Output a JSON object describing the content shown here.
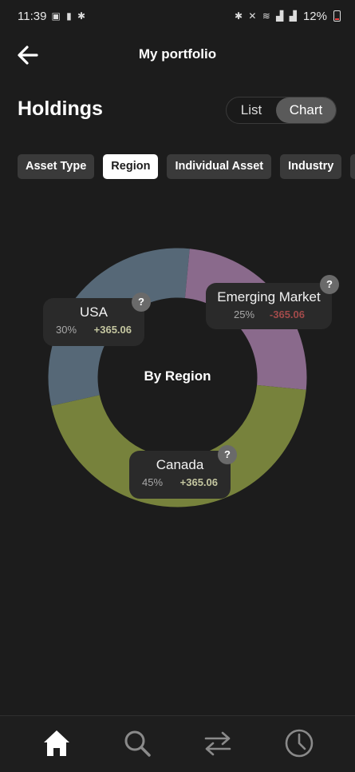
{
  "status_bar": {
    "time": "11:39",
    "battery": "12%"
  },
  "header": {
    "title": "My portfolio"
  },
  "holdings": {
    "heading": "Holdings",
    "view_toggle": {
      "options": [
        "List",
        "Chart"
      ],
      "selected": "Chart"
    }
  },
  "filters": [
    {
      "label": "Asset Type",
      "active": false
    },
    {
      "label": "Region",
      "active": true
    },
    {
      "label": "Individual Asset",
      "active": false
    },
    {
      "label": "Industry",
      "active": false
    }
  ],
  "chart_data": {
    "type": "pie",
    "center_label": "By Region",
    "categories": [
      "USA",
      "Emerging Market",
      "Canada"
    ],
    "values": [
      30,
      25,
      45
    ],
    "colors": [
      "#566877",
      "#8a6a8c",
      "#77823c"
    ],
    "labels": [
      {
        "name": "USA",
        "percent": "30%",
        "change": "+365.06"
      },
      {
        "name": "Emerging Market",
        "percent": "25%",
        "change": "-365.06"
      },
      {
        "name": "Canada",
        "percent": "45%",
        "change": "+365.06"
      }
    ]
  },
  "info_badge": "?",
  "bottom_nav": [
    "home-icon",
    "search-icon",
    "transfer-icon",
    "history-icon"
  ]
}
